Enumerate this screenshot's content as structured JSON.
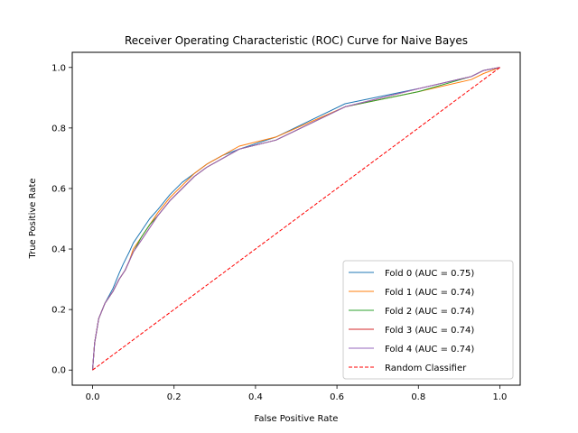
{
  "chart_data": {
    "type": "line",
    "title": "Receiver Operating Characteristic (ROC) Curve for Naive Bayes",
    "xlabel": "False Positive Rate",
    "ylabel": "True Positive Rate",
    "xlim": [
      -0.05,
      1.05
    ],
    "ylim": [
      -0.05,
      1.05
    ],
    "xticks": [
      "0.0",
      "0.2",
      "0.4",
      "0.6",
      "0.8",
      "1.0"
    ],
    "yticks": [
      "0.0",
      "0.2",
      "0.4",
      "0.6",
      "0.8",
      "1.0"
    ],
    "grid": false,
    "legend_position": "lower-right",
    "series": [
      {
        "name": "Fold 0 (AUC = 0.75)",
        "color": "#1f77b4",
        "style": "solid",
        "x": [
          0.0,
          0.005,
          0.015,
          0.03,
          0.05,
          0.065,
          0.075,
          0.09,
          0.1,
          0.12,
          0.14,
          0.16,
          0.19,
          0.22,
          0.25,
          0.28,
          0.32,
          0.36,
          0.45,
          0.62,
          0.8,
          0.93,
          0.96,
          1.0
        ],
        "y": [
          0.0,
          0.09,
          0.17,
          0.22,
          0.27,
          0.32,
          0.35,
          0.39,
          0.42,
          0.46,
          0.5,
          0.53,
          0.58,
          0.62,
          0.65,
          0.68,
          0.71,
          0.73,
          0.77,
          0.88,
          0.93,
          0.97,
          0.99,
          1.0
        ]
      },
      {
        "name": "Fold 1 (AUC = 0.74)",
        "color": "#ff7f0e",
        "style": "solid",
        "x": [
          0.0,
          0.005,
          0.015,
          0.03,
          0.05,
          0.065,
          0.08,
          0.09,
          0.1,
          0.12,
          0.14,
          0.16,
          0.19,
          0.22,
          0.25,
          0.28,
          0.32,
          0.36,
          0.45,
          0.62,
          0.8,
          0.93,
          0.96,
          1.0
        ],
        "y": [
          0.0,
          0.09,
          0.17,
          0.22,
          0.26,
          0.3,
          0.33,
          0.36,
          0.4,
          0.44,
          0.48,
          0.52,
          0.57,
          0.61,
          0.65,
          0.68,
          0.71,
          0.74,
          0.77,
          0.87,
          0.92,
          0.96,
          0.98,
          1.0
        ]
      },
      {
        "name": "Fold 2 (AUC = 0.74)",
        "color": "#2ca02c",
        "style": "solid",
        "x": [
          0.0,
          0.005,
          0.015,
          0.03,
          0.05,
          0.065,
          0.08,
          0.09,
          0.1,
          0.12,
          0.14,
          0.16,
          0.19,
          0.22,
          0.25,
          0.28,
          0.32,
          0.36,
          0.45,
          0.62,
          0.8,
          0.93,
          0.96,
          1.0
        ],
        "y": [
          0.0,
          0.09,
          0.17,
          0.22,
          0.26,
          0.3,
          0.33,
          0.36,
          0.39,
          0.44,
          0.48,
          0.51,
          0.56,
          0.6,
          0.64,
          0.67,
          0.7,
          0.73,
          0.76,
          0.87,
          0.92,
          0.97,
          0.99,
          1.0
        ]
      },
      {
        "name": "Fold 3 (AUC = 0.74)",
        "color": "#d62728",
        "style": "solid",
        "x": [
          0.0,
          0.005,
          0.015,
          0.03,
          0.05,
          0.065,
          0.08,
          0.09,
          0.1,
          0.12,
          0.14,
          0.16,
          0.19,
          0.22,
          0.25,
          0.28,
          0.32,
          0.36,
          0.45,
          0.62,
          0.8,
          0.93,
          0.96,
          1.0
        ],
        "y": [
          0.0,
          0.09,
          0.17,
          0.22,
          0.26,
          0.3,
          0.33,
          0.36,
          0.39,
          0.43,
          0.47,
          0.51,
          0.56,
          0.6,
          0.64,
          0.67,
          0.7,
          0.73,
          0.76,
          0.87,
          0.93,
          0.97,
          0.99,
          1.0
        ]
      },
      {
        "name": "Fold 4 (AUC = 0.74)",
        "color": "#9467bd",
        "style": "solid",
        "x": [
          0.0,
          0.005,
          0.015,
          0.03,
          0.05,
          0.065,
          0.08,
          0.09,
          0.1,
          0.12,
          0.14,
          0.16,
          0.19,
          0.22,
          0.25,
          0.28,
          0.32,
          0.36,
          0.45,
          0.62,
          0.8,
          0.93,
          0.96,
          1.0
        ],
        "y": [
          0.0,
          0.09,
          0.17,
          0.22,
          0.26,
          0.3,
          0.33,
          0.36,
          0.39,
          0.43,
          0.47,
          0.51,
          0.56,
          0.6,
          0.64,
          0.67,
          0.7,
          0.73,
          0.76,
          0.87,
          0.93,
          0.97,
          0.99,
          1.0
        ]
      },
      {
        "name": "Random Classifier",
        "color": "#ff0000",
        "style": "dashed",
        "x": [
          0.0,
          1.0
        ],
        "y": [
          0.0,
          1.0
        ]
      }
    ]
  }
}
